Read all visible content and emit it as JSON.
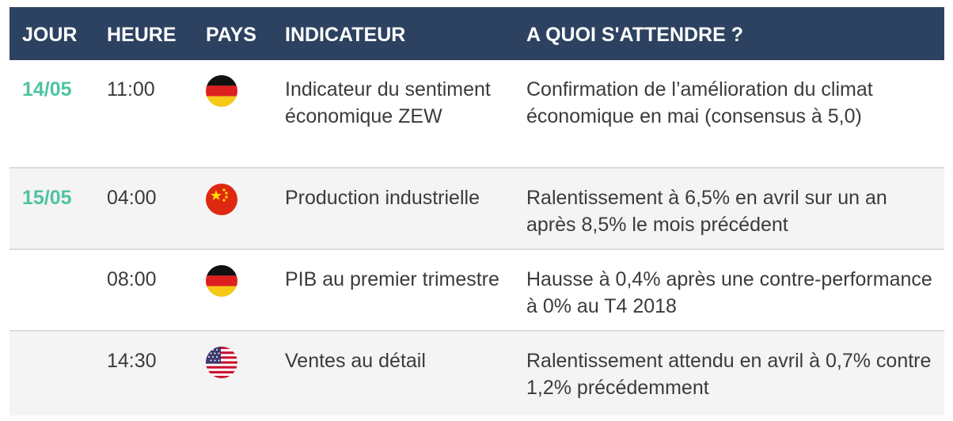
{
  "header": {
    "jour": "JOUR",
    "heure": "HEURE",
    "pays": "PAYS",
    "indicateur": "INDICATEUR",
    "attendre": "A QUOI S'ATTENDRE ?"
  },
  "rows": [
    {
      "jour": "14/05",
      "heure": "11:00",
      "flag": "germany-flag-icon",
      "indicateur": "Indicateur du sentiment économique ZEW",
      "attendre": "Confirmation de l’amélioration du climat économique en mai (consensus à 5,0)"
    },
    {
      "jour": "15/05",
      "heure": "04:00",
      "flag": "china-flag-icon",
      "indicateur": "Production industrielle",
      "attendre": "Ralentissement à 6,5% en avril sur un an après 8,5% le mois précédent"
    },
    {
      "jour": "",
      "heure": "08:00",
      "flag": "germany-flag-icon",
      "indicateur": "PIB au premier trimestre",
      "attendre": "Hausse à 0,4% après une contre-performance à 0% au T4 2018"
    },
    {
      "jour": "",
      "heure": "14:30",
      "flag": "usa-flag-icon",
      "indicateur": "Ventes au détail",
      "attendre": "Ralentissement attendu en avril à 0,7% contre 1,2% précédemment"
    }
  ],
  "colors": {
    "header_bg": "#2d4261",
    "date_accent": "#4fc3a1",
    "row_alt_bg": "#f4f4f4"
  }
}
